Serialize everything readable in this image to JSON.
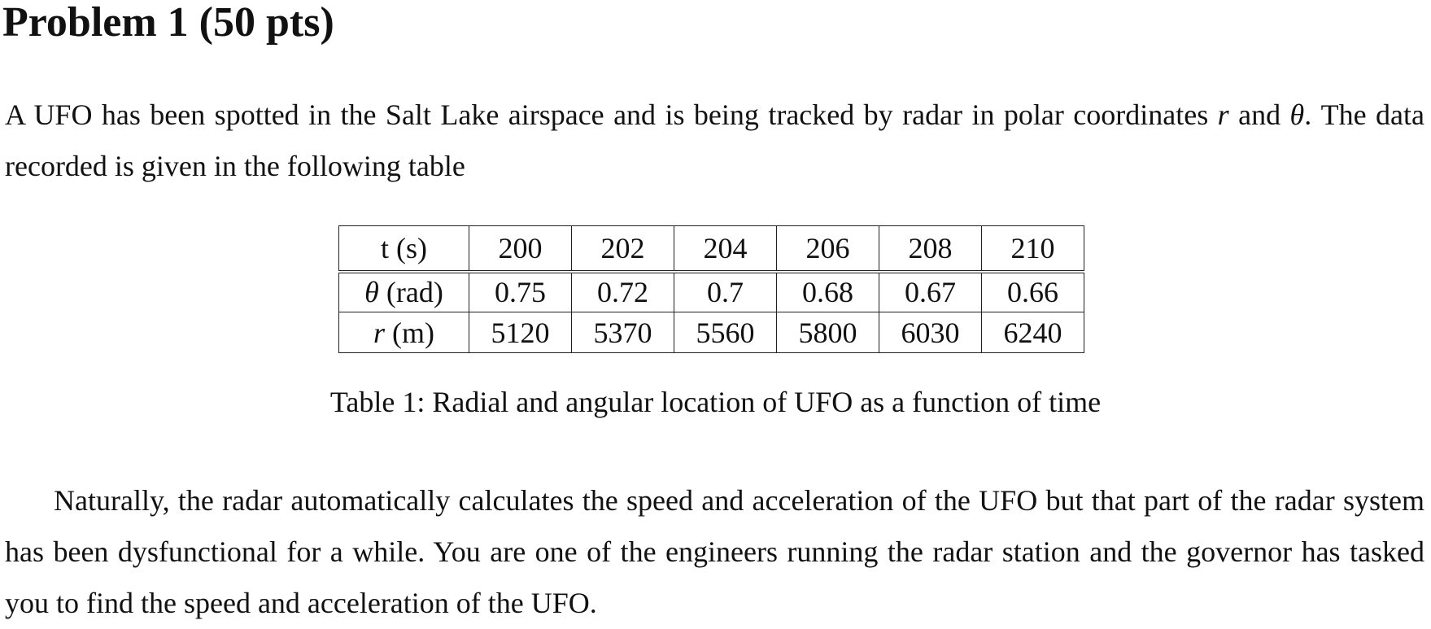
{
  "heading": "Problem 1 (50 pts)",
  "intro": {
    "text_before_r": "A UFO has been spotted in the Salt Lake airspace and is being tracked by radar in polar coordinates ",
    "r_symbol": "r",
    "text_and": " and ",
    "theta_symbol": "θ",
    "text_after_theta": ". The data recorded is given in the following table"
  },
  "table": {
    "rows": [
      {
        "label": "t (s)",
        "label_symbol": "",
        "label_unit": "",
        "values": [
          "200",
          "202",
          "204",
          "206",
          "208",
          "210"
        ]
      },
      {
        "label": "",
        "label_symbol": "θ",
        "label_unit": " (rad)",
        "values": [
          "0.75",
          "0.72",
          "0.7",
          "0.68",
          "0.67",
          "0.66"
        ]
      },
      {
        "label": "",
        "label_symbol": "r",
        "label_unit": " (m)",
        "values": [
          "5120",
          "5370",
          "5560",
          "5800",
          "6030",
          "6240"
        ]
      }
    ],
    "caption": "Table 1: Radial and angular location of UFO as a function of time"
  },
  "body_paragraph": "Naturally, the radar automatically calculates the speed and acceleration of the UFO but that part of the radar system has been dysfunctional for a while.  You are one of the engineers running the radar station and the governor has tasked you to find the speed and acceleration of the UFO."
}
